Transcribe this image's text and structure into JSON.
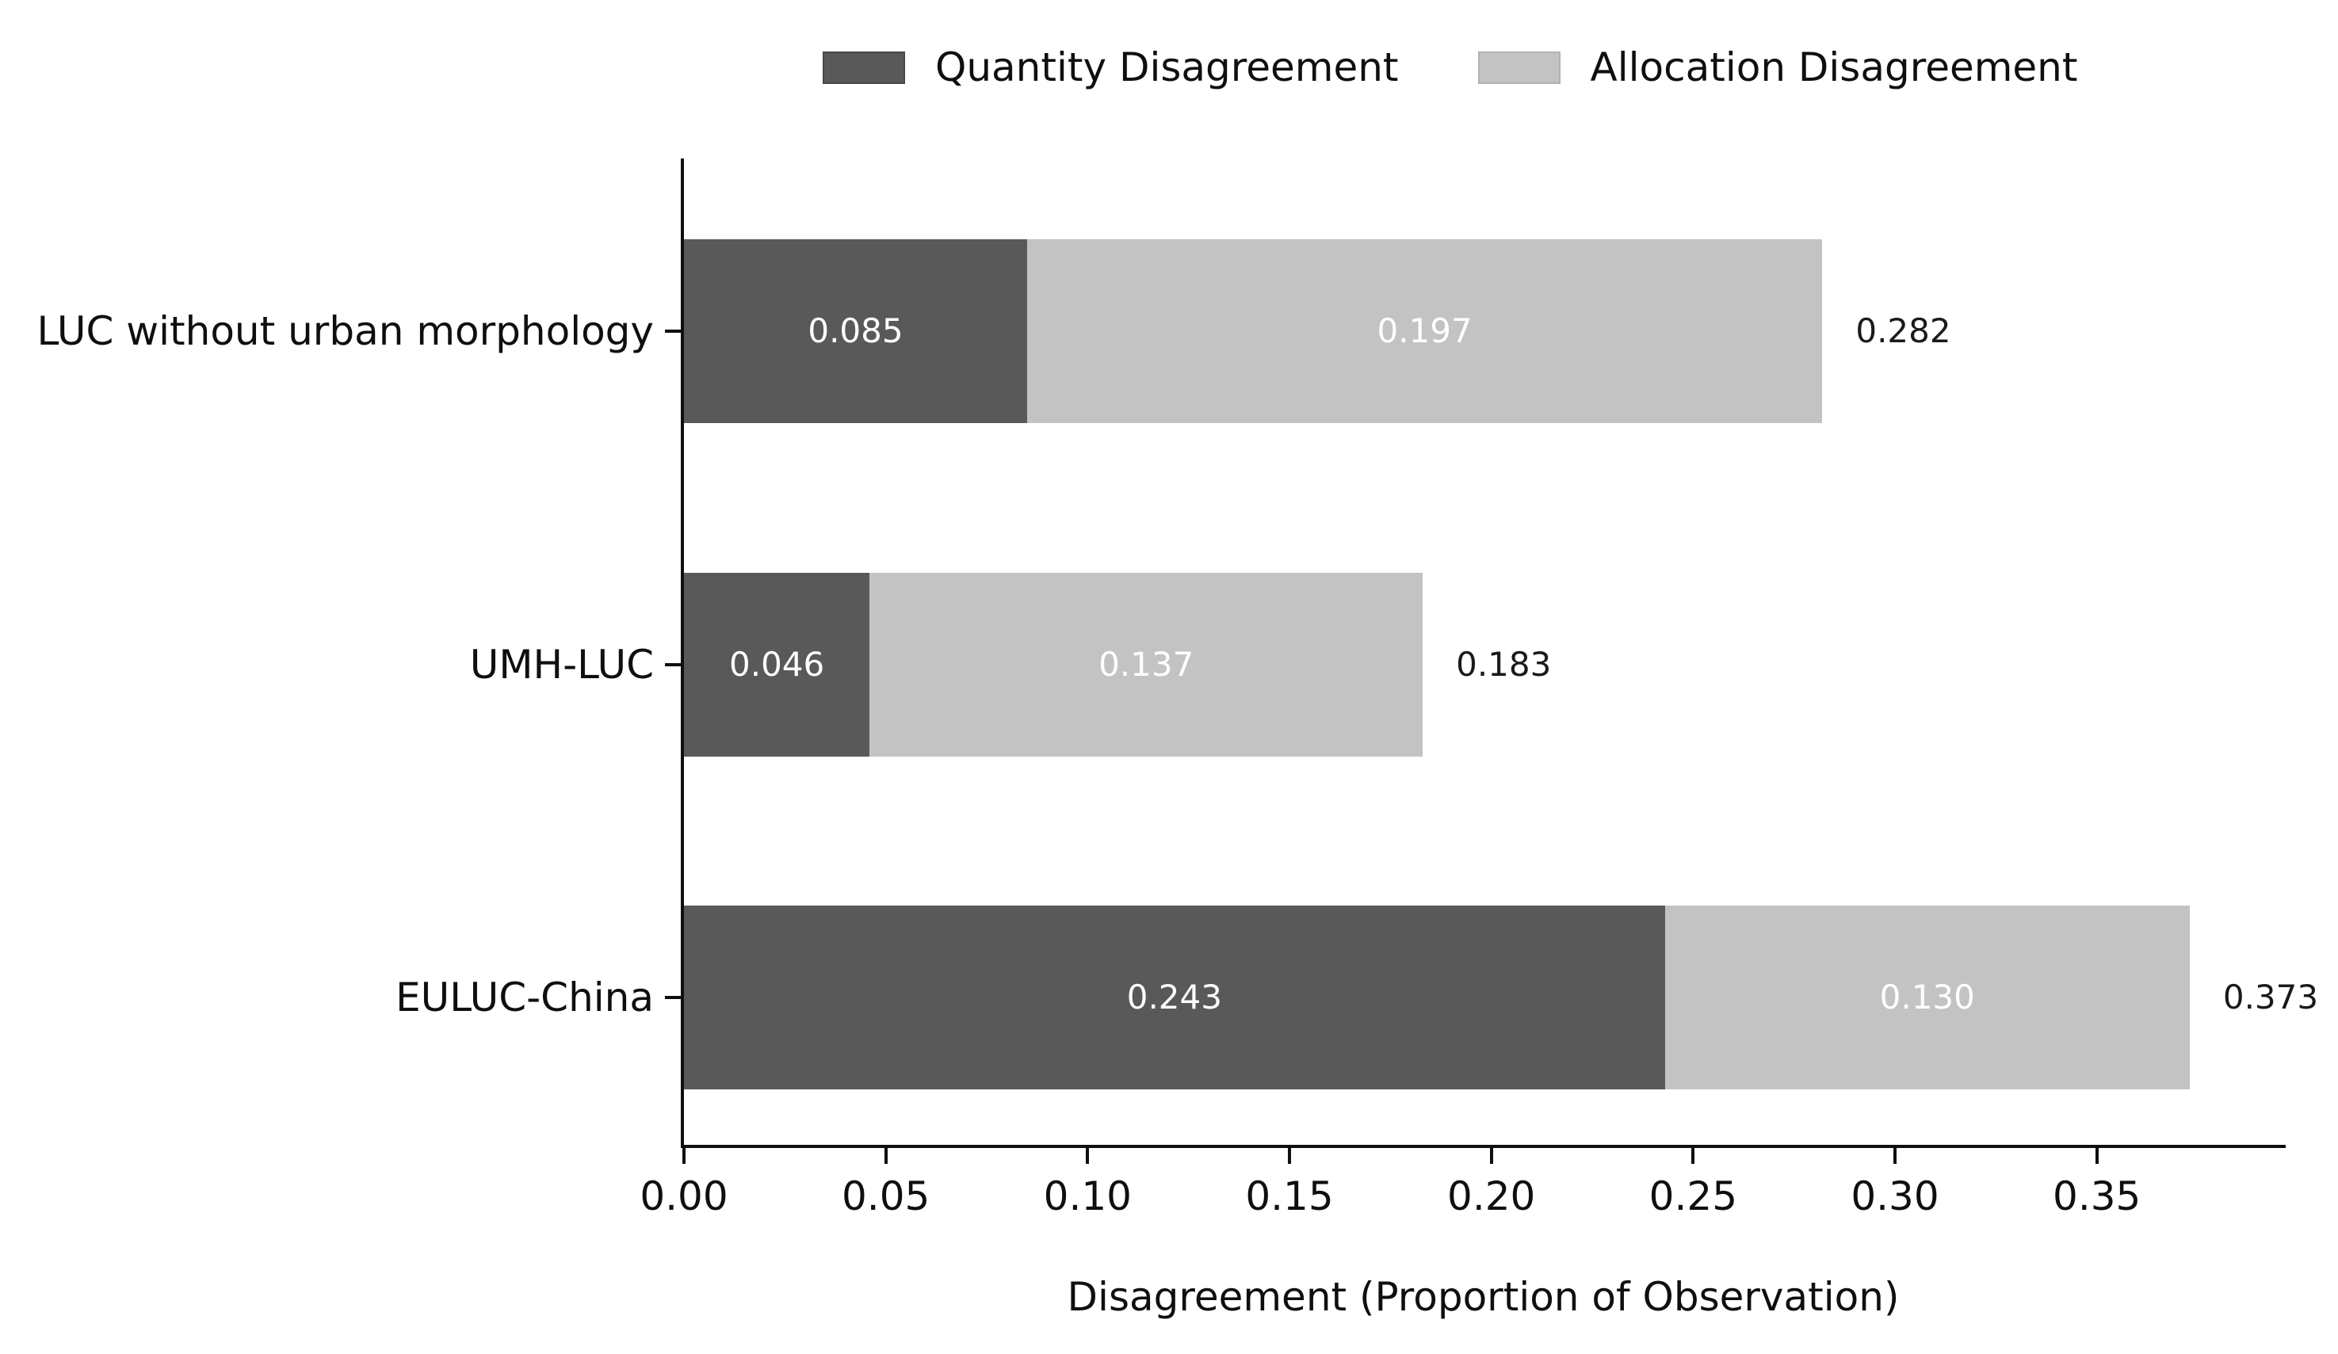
{
  "figure": {
    "background": "#ffffff",
    "text_color": "#0f0f0f"
  },
  "legend": {
    "position": "top-center",
    "items": [
      {
        "label": "Quantity Disagreement",
        "color": "#595959",
        "edge": "#474747"
      },
      {
        "label": "Allocation Disagreement",
        "color": "#c3c3c3",
        "edge": "#b2b2b2"
      }
    ]
  },
  "chart_data": {
    "type": "bar",
    "orientation": "horizontal",
    "stacked": true,
    "title": "",
    "xlabel": "Disagreement (Proportion of Observation)",
    "ylabel": "",
    "categories": [
      "LUC without urban morphology",
      "UMH-LUC",
      "EULUC-China"
    ],
    "series": [
      {
        "name": "Quantity Disagreement",
        "color": "#595959",
        "values": [
          0.085,
          0.046,
          0.243
        ],
        "value_labels": [
          "0.085",
          "0.046",
          "0.243"
        ],
        "label_color": "#ffffff"
      },
      {
        "name": "Allocation Disagreement",
        "color": "#c3c3c3",
        "values": [
          0.197,
          0.137,
          0.13
        ],
        "value_labels": [
          "0.197",
          "0.137",
          "0.130"
        ],
        "label_color": "#ffffff"
      }
    ],
    "totals": [
      0.282,
      0.183,
      0.373
    ],
    "total_labels": [
      "0.282",
      "0.183",
      "0.373"
    ],
    "xlim": [
      0,
      0.396
    ],
    "xticks": {
      "values": [
        0.0,
        0.05,
        0.1,
        0.15,
        0.2,
        0.25,
        0.3,
        0.35
      ],
      "labels": [
        "0.00",
        "0.05",
        "0.10",
        "0.15",
        "0.20",
        "0.25",
        "0.30",
        "0.35"
      ]
    },
    "grid": false,
    "legend_position": "top",
    "axis_color": "#0f0f0f"
  }
}
